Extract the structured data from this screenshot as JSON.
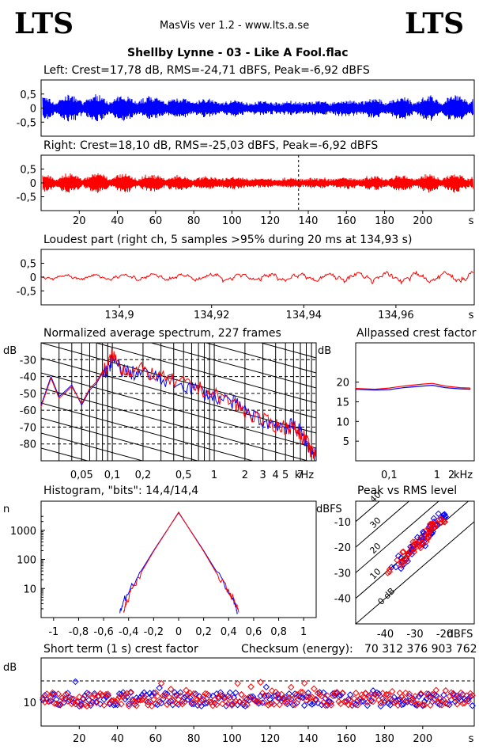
{
  "header": {
    "logo_left": "LTS",
    "logo_right": "LTS",
    "app_line": "MasVis ver 1.2 - www.lts.a.se",
    "file_title": "Shellby Lynne - 03 - Like A Fool.flac"
  },
  "colors": {
    "left": "#0000ff",
    "right": "#ff0000",
    "grid": "#000000"
  },
  "chart_data": [
    {
      "type": "line",
      "id": "left-waveform",
      "title": "Left: Crest=17,78 dB, RMS=-24,71 dBFS, Peak=-6,92 dBFS",
      "ylim": [
        -1,
        1
      ],
      "ytick_labels": [
        "0,5",
        "0",
        "-0,5"
      ],
      "series": [
        {
          "name": "Left",
          "color": "#0000ff"
        }
      ]
    },
    {
      "type": "line",
      "id": "right-waveform",
      "title": "Right: Crest=18,10 dB, RMS=-25,03 dBFS, Peak=-6,92 dBFS",
      "ylim": [
        -1,
        1
      ],
      "xlim": [
        0,
        227
      ],
      "ytick_labels": [
        "0,5",
        "0",
        "-0,5"
      ],
      "xtick_labels": [
        "20",
        "40",
        "60",
        "80",
        "100",
        "120",
        "140",
        "160",
        "180",
        "200",
        "s"
      ],
      "loudest_marker_s": 134.93,
      "series": [
        {
          "name": "Right",
          "color": "#ff0000"
        }
      ]
    },
    {
      "type": "line",
      "id": "loudest-part",
      "title": "Loudest part (right ch, 5 samples >95% during 20 ms at 134,93 s)",
      "xlim": [
        134.883,
        134.977
      ],
      "ylim": [
        -1,
        1
      ],
      "ytick_labels": [
        "0,5",
        "0",
        "-0,5"
      ],
      "xtick_labels": [
        "134,9",
        "134,92",
        "134,94",
        "134,96",
        "s"
      ],
      "series": [
        {
          "name": "Right",
          "color": "#ff0000"
        }
      ]
    },
    {
      "type": "line",
      "id": "spectrum",
      "title": "Normalized average spectrum, 227 frames",
      "ylabel": "dB",
      "xlabel": "kHz",
      "xscale": "log",
      "xlim": [
        0.02,
        10
      ],
      "ylim": [
        -90,
        -20
      ],
      "ytick_labels": [
        "-30",
        "-40",
        "-50",
        "-60",
        "-70",
        "-80"
      ],
      "xtick_labels": [
        "0,05",
        "0,1",
        "0,2",
        "0,5",
        "1",
        "2",
        "3",
        "4",
        "5",
        "7",
        "kHz"
      ],
      "series": [
        {
          "name": "Left",
          "color": "#0000ff",
          "x": [
            0.02,
            0.025,
            0.03,
            0.04,
            0.05,
            0.06,
            0.07,
            0.08,
            0.09,
            0.1,
            0.12,
            0.15,
            0.2,
            0.3,
            0.5,
            0.7,
            1,
            1.5,
            2,
            3,
            4,
            5,
            6,
            7,
            8,
            9,
            10
          ],
          "y": [
            -57,
            -40,
            -52,
            -45,
            -57,
            -48,
            -44,
            -38,
            -36,
            -30,
            -35,
            -38,
            -38,
            -42,
            -45,
            -48,
            -52,
            -55,
            -60,
            -67,
            -68,
            -70,
            -69,
            -73,
            -79,
            -84,
            -87
          ]
        },
        {
          "name": "Right",
          "color": "#ff0000",
          "x": [
            0.02,
            0.025,
            0.03,
            0.04,
            0.05,
            0.06,
            0.07,
            0.08,
            0.09,
            0.1,
            0.12,
            0.15,
            0.2,
            0.3,
            0.5,
            0.7,
            1,
            1.5,
            2,
            3,
            4,
            5,
            6,
            7,
            8,
            9,
            10
          ],
          "y": [
            -58,
            -41,
            -53,
            -46,
            -56,
            -47,
            -43,
            -37,
            -34,
            -26,
            -35,
            -37,
            -36,
            -41,
            -44,
            -47,
            -51,
            -55,
            -61,
            -66,
            -69,
            -70,
            -70,
            -74,
            -78,
            -85,
            -88
          ]
        }
      ]
    },
    {
      "type": "line",
      "id": "allpassed-crest",
      "title": "Allpassed crest factor",
      "ylabel": "dB",
      "xlabel": "kHz",
      "xscale": "log",
      "ylim": [
        0,
        30
      ],
      "ytick_labels": [
        "20",
        "15",
        "10",
        "5"
      ],
      "xtick_labels": [
        "0,1",
        "1",
        "2",
        "kHz"
      ],
      "series": [
        {
          "name": "Left",
          "color": "#0000ff",
          "x": [
            0.02,
            0.05,
            0.1,
            0.2,
            0.5,
            0.8,
            1.5,
            3,
            5
          ],
          "y": [
            18.2,
            18.0,
            18.1,
            18.6,
            19.0,
            19.2,
            18.6,
            18.3,
            18.2
          ]
        },
        {
          "name": "Right",
          "color": "#ff0000",
          "x": [
            0.02,
            0.05,
            0.1,
            0.2,
            0.5,
            0.8,
            1.5,
            3,
            5
          ],
          "y": [
            18.4,
            18.2,
            18.5,
            19.0,
            19.5,
            19.7,
            19.0,
            18.6,
            18.5
          ]
        }
      ]
    },
    {
      "type": "line",
      "id": "histogram",
      "title": "Histogram, \"bits\": 14,4/14,4",
      "ylabel": "n",
      "yscale": "log",
      "xlim": [
        -1.1,
        1.1
      ],
      "ylim": [
        1,
        10000
      ],
      "ytick_labels": [
        "1000",
        "100",
        "10"
      ],
      "xtick_labels": [
        "-1",
        "-0,8",
        "-0,6",
        "-0,4",
        "-0,2",
        "0",
        "0,2",
        "0,4",
        "0,6",
        "0,8",
        "1"
      ],
      "series": [
        {
          "name": "Left",
          "color": "#0000ff",
          "x": [
            -0.47,
            -0.45,
            -0.4,
            -0.3,
            -0.2,
            -0.1,
            0,
            0.1,
            0.2,
            0.3,
            0.4,
            0.45,
            0.47
          ],
          "y": [
            1.5,
            3,
            8,
            40,
            200,
            900,
            4000,
            900,
            200,
            40,
            8,
            3,
            1.5
          ]
        },
        {
          "name": "Right",
          "color": "#ff0000",
          "x": [
            -0.44,
            -0.42,
            -0.38,
            -0.3,
            -0.2,
            -0.1,
            0,
            0.1,
            0.2,
            0.3,
            0.4,
            0.46,
            0.48
          ],
          "y": [
            1.5,
            3,
            8,
            35,
            190,
            880,
            4200,
            880,
            190,
            35,
            8,
            3,
            1.5
          ]
        }
      ]
    },
    {
      "type": "scatter",
      "id": "peak-vs-rms",
      "title": "Peak vs RMS level",
      "ylabel": "dBFS",
      "xlabel": "dBFS",
      "xlim": [
        -50,
        -10
      ],
      "ylim": [
        -50,
        -2
      ],
      "ytick_labels": [
        "-10",
        "-20",
        "-30",
        "-40"
      ],
      "xtick_labels": [
        "-40",
        "-30",
        "-20",
        "dBFS"
      ],
      "crest_line_labels": [
        "0 dB",
        "10",
        "20",
        "30",
        "40"
      ],
      "series": [
        {
          "name": "Left",
          "color": "#0000ff",
          "x": [
            -36,
            -34,
            -32,
            -30,
            -29,
            -28,
            -27,
            -26,
            -25,
            -24,
            -23,
            -22,
            -21,
            -20,
            -33,
            -31,
            -28,
            -25
          ],
          "y": [
            -28,
            -24,
            -22,
            -20,
            -18,
            -17,
            -16,
            -14,
            -13,
            -12,
            -11,
            -9,
            -8,
            -7,
            -26,
            -21,
            -19,
            -15
          ]
        },
        {
          "name": "Right",
          "color": "#ff0000",
          "x": [
            -38,
            -35,
            -33,
            -31,
            -30,
            -29,
            -27,
            -26,
            -25,
            -24,
            -23,
            -22,
            -21,
            -34,
            -32,
            -28,
            -26,
            -24
          ],
          "y": [
            -30,
            -25,
            -23,
            -21,
            -19,
            -18,
            -17,
            -15,
            -14,
            -13,
            -12,
            -10,
            -9,
            -27,
            -22,
            -20,
            -16,
            -11
          ]
        }
      ]
    },
    {
      "type": "scatter",
      "id": "short-term-crest",
      "title": "Short term (1 s) crest factor",
      "ylabel": "dB",
      "checksum_label": "Checksum (energy):",
      "checksum_value": "70 312 376 903 762",
      "xlim": [
        0,
        227
      ],
      "ytick_labels": [
        "10"
      ],
      "xtick_labels": [
        "20",
        "40",
        "60",
        "80",
        "100",
        "120",
        "140",
        "160",
        "180",
        "200",
        "s"
      ],
      "series": [
        {
          "name": "Left",
          "color": "#0000ff"
        },
        {
          "name": "Right",
          "color": "#ff0000"
        }
      ]
    }
  ]
}
